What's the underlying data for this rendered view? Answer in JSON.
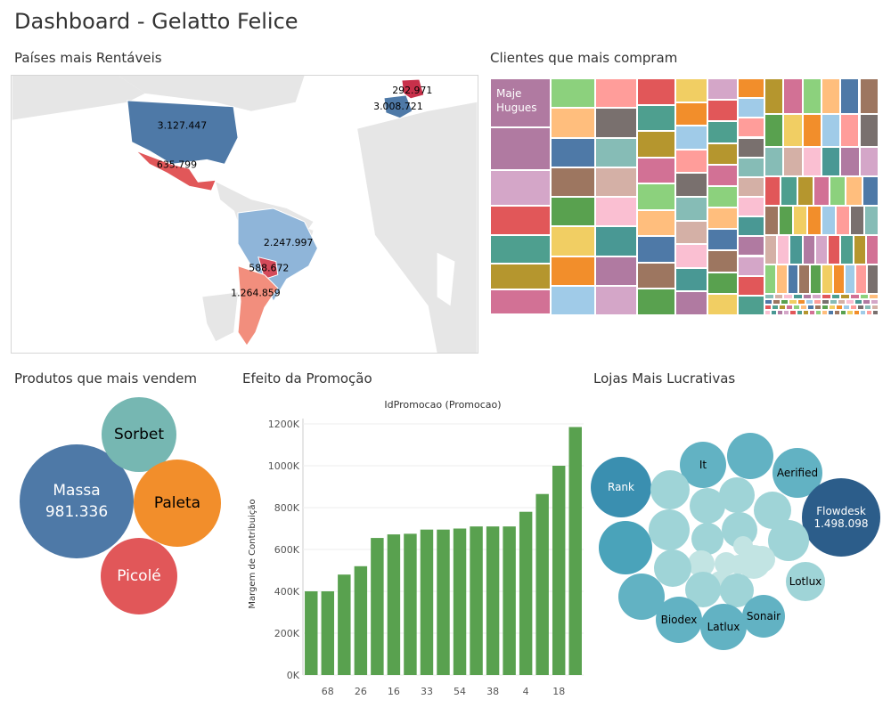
{
  "dashboard": {
    "title": "Dashboard - Gelatto Felice"
  },
  "panels": {
    "map_title": "Países mais Rentáveis",
    "treemap_title": "Clientes que mais compram",
    "bubbles_title": "Produtos que mais vendem",
    "bars_title": "Efeito da Promoção",
    "stores_title": "Lojas Mais Lucrativas"
  },
  "map": {
    "countries": [
      {
        "name": "USA",
        "value": "3.127.447",
        "color": "#4e79a7"
      },
      {
        "name": "Mexico",
        "value": "635.799",
        "color": "#e15759"
      },
      {
        "name": "Brazil",
        "value": "2.247.997",
        "color": "#8fb5d9"
      },
      {
        "name": "Uruguay/Paraguay",
        "value": "588.672",
        "color": "#d44a5a"
      },
      {
        "name": "Argentina",
        "value": "1.264.859",
        "color": "#f28e7d"
      },
      {
        "name": "France",
        "value": "3.008.721",
        "color": "#4e79a7"
      },
      {
        "name": "Germany",
        "value": "292.971",
        "color": "#c8304a"
      }
    ]
  },
  "treemap": {
    "top_label_line1": "Maje",
    "top_label_line2": "Hugues",
    "palette": [
      "#b07aa1",
      "#d4a6c8",
      "#e15759",
      "#4e9f8f",
      "#b5962e",
      "#d27195",
      "#8cd17d",
      "#ffbe7d",
      "#4e79a7",
      "#9d7660",
      "#59a14f",
      "#f1ce63",
      "#f28e2b",
      "#a0cbe8",
      "#ff9d9a",
      "#79706e",
      "#86bcb6",
      "#d4b0a6",
      "#fabfd2",
      "#499894"
    ]
  },
  "products": {
    "items": [
      {
        "name": "Massa",
        "value": "981.336",
        "color": "#4e79a7"
      },
      {
        "name": "Sorbet",
        "value": "",
        "color": "#76b7b2"
      },
      {
        "name": "Paleta",
        "value": "",
        "color": "#f28e2b"
      },
      {
        "name": "Picolé",
        "value": "",
        "color": "#e15759"
      }
    ]
  },
  "chart_data": {
    "type": "bar",
    "title": "IdPromocao (Promocao)",
    "xlabel": "",
    "ylabel": "Margem de Contribuição",
    "ylim": [
      0,
      1200000
    ],
    "y_ticks": [
      "0K",
      "200K",
      "400K",
      "600K",
      "800K",
      "1000K",
      "1200K"
    ],
    "x_tick_labels": [
      "68",
      "26",
      "16",
      "33",
      "54",
      "38",
      "4",
      "18"
    ],
    "categories": [
      "?",
      "68",
      "?",
      "26",
      "?",
      "16",
      "?",
      "33",
      "?",
      "54",
      "?",
      "38",
      "?",
      "4",
      "?",
      "18",
      "?"
    ],
    "values": [
      400000,
      400000,
      480000,
      520000,
      655000,
      672000,
      675000,
      695000,
      695000,
      700000,
      710000,
      710000,
      710000,
      780000,
      865000,
      1000000,
      1185000
    ],
    "color": "#59a14f"
  },
  "stores": {
    "labeled": [
      {
        "name": "Rank",
        "value": ""
      },
      {
        "name": "It",
        "value": ""
      },
      {
        "name": "Aerified",
        "value": ""
      },
      {
        "name": "Flowdesk",
        "value": "1.498.098"
      },
      {
        "name": "Lotlux",
        "value": ""
      },
      {
        "name": "Biodex",
        "value": ""
      },
      {
        "name": "Sonair",
        "value": ""
      },
      {
        "name": "Latlux",
        "value": ""
      }
    ]
  }
}
